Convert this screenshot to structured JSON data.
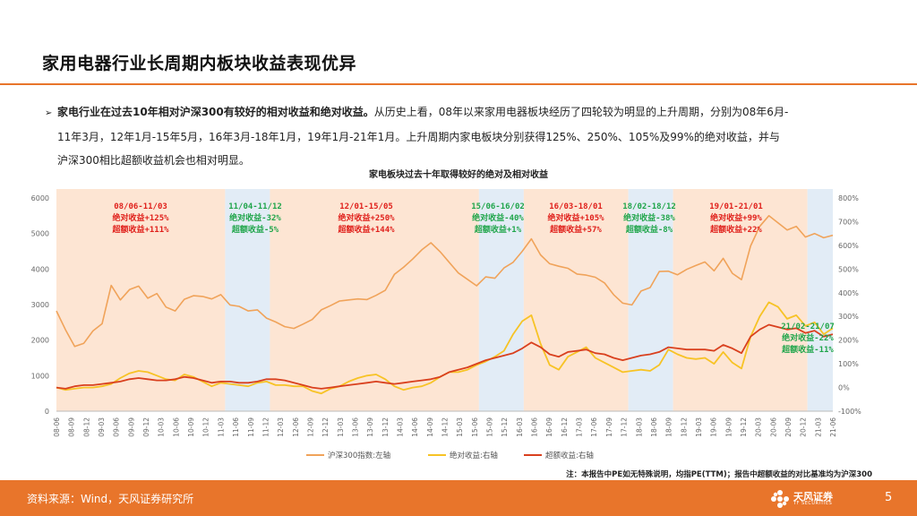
{
  "page": {
    "title": "家用电器行业长周期内板块收益表现优异",
    "bullet": {
      "bold": "家电行业在过去10年相对沪深300有较好的相对收益和绝对收益。",
      "line1_rest": "从历史上看，08年以来家用电器板块经历了四轮较为明显的上升周期，分别为08年6月-",
      "line2": "11年3月，12年1月-15年5月，16年3月-18年1月，19年1月-21年1月。上升周期内家电板块分别获得125%、250%、105%及99%的绝对收益，并与",
      "line3": "沪深300相比超额收益机会也相对明显。"
    },
    "footer": {
      "source": "资料来源：Wind，天风证券研究所",
      "logo_text": "天风证券",
      "logo_sub": "TF SECURITIES",
      "page_number": "5"
    }
  },
  "chart_data": {
    "type": "line",
    "title": "家电板块过去十年取得较好的绝对及相对收益",
    "note": "注：本报告中PE如无特殊说明，均指PE(TTM)；报告中超额收益的对比基准均为沪深300",
    "x_tick_labels": [
      "08-06",
      "08-09",
      "08-12",
      "09-03",
      "09-06",
      "09-09",
      "09-12",
      "10-03",
      "10-06",
      "10-09",
      "10-12",
      "11-03",
      "11-06",
      "11-09",
      "11-12",
      "12-03",
      "12-06",
      "12-09",
      "12-12",
      "13-03",
      "13-06",
      "13-09",
      "13-12",
      "14-03",
      "14-06",
      "14-09",
      "14-12",
      "15-03",
      "15-06",
      "15-09",
      "15-12",
      "16-03",
      "16-06",
      "16-09",
      "16-12",
      "17-03",
      "17-06",
      "17-09",
      "17-12",
      "18-03",
      "18-06",
      "18-09",
      "18-12",
      "19-03",
      "19-06",
      "19-09",
      "19-12",
      "20-03",
      "20-06",
      "20-09",
      "20-12",
      "21-03",
      "21-06"
    ],
    "left_axis": {
      "ylim": [
        0,
        6000
      ],
      "ticks": [
        0,
        1000,
        2000,
        3000,
        4000,
        5000,
        6000
      ]
    },
    "right_axis": {
      "ylim": [
        -100,
        800
      ],
      "ticks": [
        "-100%",
        "0%",
        "100%",
        "200%",
        "300%",
        "400%",
        "500%",
        "600%",
        "700%",
        "800%"
      ]
    },
    "colors": {
      "hs300": "#f0a35a",
      "absolute": "#f7c325",
      "excess": "#d9401e",
      "up_band": "#fde5d3",
      "down_band": "#e2ecf6",
      "red_text": "#e0201b",
      "green_text": "#1fa54a"
    },
    "series": [
      {
        "name": "沪深300指数:左轴",
        "axis": "left",
        "values": [
          2820,
          2290,
          1820,
          1910,
          2260,
          2460,
          3540,
          3130,
          3420,
          3520,
          3180,
          3310,
          2930,
          2820,
          3150,
          3250,
          3230,
          3160,
          3280,
          2990,
          2950,
          2820,
          2850,
          2620,
          2510,
          2380,
          2330,
          2450,
          2580,
          2850,
          2970,
          3100,
          3130,
          3160,
          3140,
          3260,
          3400,
          3850,
          4050,
          4280,
          4540,
          4740,
          4490,
          4190,
          3890,
          3710,
          3530,
          3780,
          3740,
          4030,
          4190,
          4500,
          4850,
          4400,
          4150,
          4080,
          4020,
          3860,
          3830,
          3770,
          3610,
          3280,
          3040,
          2990,
          3380,
          3480,
          3930,
          3940,
          3840,
          3990,
          4100,
          4200,
          3950,
          4300,
          3880,
          3700,
          4650,
          5200,
          5500,
          5300,
          5100,
          5200,
          4900,
          5000,
          4880,
          4950
        ]
      },
      {
        "name": "绝对收益:右轴",
        "axis": "right",
        "values": [
          0,
          -10,
          -5,
          0,
          0,
          5,
          15,
          40,
          60,
          70,
          65,
          50,
          35,
          30,
          55,
          45,
          25,
          5,
          20,
          15,
          10,
          5,
          20,
          25,
          10,
          10,
          5,
          5,
          -15,
          -25,
          -5,
          5,
          25,
          40,
          50,
          55,
          35,
          5,
          -10,
          0,
          5,
          20,
          45,
          65,
          65,
          75,
          95,
          110,
          130,
          155,
          225,
          280,
          305,
          185,
          95,
          75,
          130,
          150,
          170,
          125,
          105,
          85,
          65,
          70,
          75,
          70,
          95,
          160,
          140,
          125,
          120,
          125,
          100,
          150,
          105,
          80,
          215,
          300,
          360,
          340,
          290,
          305,
          260,
          275,
          225,
          250
        ]
      },
      {
        "name": "超额收益:右轴",
        "axis": "right",
        "values": [
          0,
          -5,
          5,
          10,
          10,
          15,
          20,
          25,
          35,
          40,
          35,
          30,
          30,
          35,
          45,
          40,
          30,
          20,
          25,
          25,
          20,
          20,
          25,
          35,
          35,
          30,
          20,
          10,
          0,
          -5,
          0,
          5,
          10,
          15,
          20,
          25,
          20,
          15,
          20,
          25,
          30,
          35,
          45,
          65,
          75,
          85,
          100,
          115,
          125,
          135,
          145,
          165,
          190,
          170,
          140,
          130,
          150,
          155,
          160,
          145,
          140,
          125,
          115,
          125,
          135,
          140,
          150,
          170,
          165,
          160,
          160,
          160,
          155,
          180,
          165,
          145,
          215,
          245,
          265,
          255,
          245,
          250,
          230,
          240,
          215,
          225
        ]
      }
    ],
    "periods": [
      {
        "kind": "up",
        "label": "08/06-11/03",
        "abs": "绝对收益+125%",
        "excess": "超额收益+111%"
      },
      {
        "kind": "down",
        "label": "11/04-11/12",
        "abs": "绝对收益-32%",
        "excess": "超额收益-5%"
      },
      {
        "kind": "up",
        "label": "12/01-15/05",
        "abs": "绝对收益+250%",
        "excess": "超额收益+144%"
      },
      {
        "kind": "down",
        "label": "15/06-16/02",
        "abs": "绝对收益-40%",
        "excess": "超额收益+1%"
      },
      {
        "kind": "up",
        "label": "16/03-18/01",
        "abs": "绝对收益+105%",
        "excess": "超额收益+57%"
      },
      {
        "kind": "down",
        "label": "18/02-18/12",
        "abs": "绝对收益-38%",
        "excess": "超额收益-8%"
      },
      {
        "kind": "up",
        "label": "19/01-21/01",
        "abs": "绝对收益+99%",
        "excess": "超额收益+22%"
      },
      {
        "kind": "down",
        "label": "21/02-21/07",
        "abs": "绝对收益-22%",
        "excess": "超额收益-11%"
      }
    ]
  }
}
